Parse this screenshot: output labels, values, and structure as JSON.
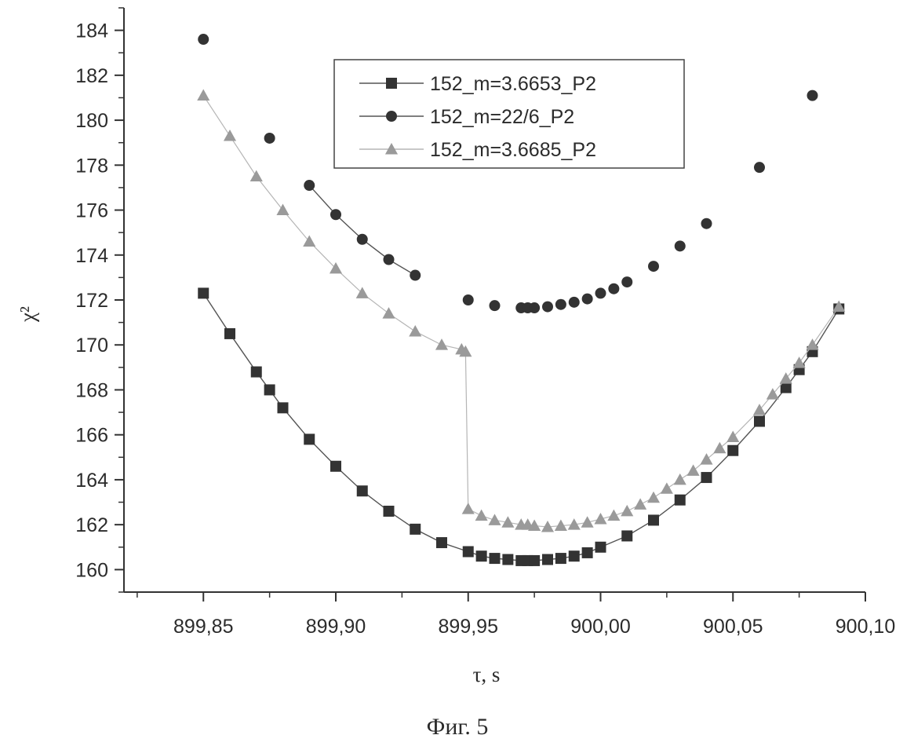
{
  "caption": "Фиг. 5",
  "chart_data": {
    "type": "scatter",
    "xlabel": "τ, s",
    "ylabel": "χ²",
    "xlim": [
      899.82,
      900.1
    ],
    "ylim": [
      159,
      185
    ],
    "xticks": [
      899.85,
      899.9,
      899.95,
      900.0,
      900.05,
      900.1
    ],
    "xtick_labels": [
      "899,85",
      "899,90",
      "899,95",
      "900,00",
      "900,05",
      "900,10"
    ],
    "yticks": [
      160,
      162,
      164,
      166,
      168,
      170,
      172,
      174,
      176,
      178,
      180,
      182,
      184
    ],
    "ytick_labels": [
      "160",
      "162",
      "164",
      "166",
      "168",
      "170",
      "172",
      "174",
      "176",
      "178",
      "180",
      "182",
      "184"
    ],
    "grid": false,
    "legend_position": "top-right",
    "series": [
      {
        "name": "152_m=3.6653_P2",
        "marker": "square",
        "color": "#333333",
        "line_color": "#555555",
        "x": [
          899.85,
          899.86,
          899.87,
          899.875,
          899.88,
          899.89,
          899.9,
          899.91,
          899.92,
          899.93,
          899.94,
          899.95,
          899.955,
          899.96,
          899.965,
          899.97,
          899.9725,
          899.975,
          899.98,
          899.985,
          899.99,
          899.995,
          900.0,
          900.01,
          900.02,
          900.03,
          900.04,
          900.05,
          900.06,
          900.07,
          900.075,
          900.08,
          900.09
        ],
        "y": [
          172.3,
          170.5,
          168.8,
          168.0,
          167.2,
          165.8,
          164.6,
          163.5,
          162.6,
          161.8,
          161.2,
          160.8,
          160.6,
          160.5,
          160.45,
          160.4,
          160.4,
          160.4,
          160.45,
          160.5,
          160.6,
          160.75,
          161.0,
          161.5,
          162.2,
          163.1,
          164.1,
          165.3,
          166.6,
          168.1,
          168.9,
          169.7,
          171.6
        ]
      },
      {
        "name": "152_m=22/6_P2",
        "marker": "circle",
        "color": "#333333",
        "line_color": "#555555",
        "x": [
          899.85,
          899.875,
          899.89,
          899.9,
          899.91,
          899.92,
          899.93,
          899.95,
          899.96,
          899.97,
          899.9725,
          899.975,
          899.98,
          899.985,
          899.99,
          899.995,
          900.0,
          900.005,
          900.01,
          900.02,
          900.03,
          900.04,
          900.06,
          900.08
        ],
        "y": [
          183.6,
          179.2,
          177.1,
          175.8,
          174.7,
          173.8,
          173.1,
          172.0,
          171.75,
          171.65,
          171.65,
          171.65,
          171.7,
          171.8,
          171.9,
          172.05,
          172.3,
          172.5,
          172.8,
          173.5,
          174.4,
          175.4,
          177.9,
          181.1
        ]
      },
      {
        "name": "152_m=3.6685_P2",
        "marker": "triangle",
        "color": "#9a9a9a",
        "line_color": "#b5b5b5",
        "x": [
          899.85,
          899.86,
          899.87,
          899.88,
          899.89,
          899.9,
          899.91,
          899.92,
          899.93,
          899.94,
          899.9475,
          899.949,
          899.95,
          899.955,
          899.96,
          899.965,
          899.97,
          899.9725,
          899.975,
          899.98,
          899.985,
          899.99,
          899.995,
          900.0,
          900.005,
          900.01,
          900.015,
          900.02,
          900.025,
          900.03,
          900.035,
          900.04,
          900.045,
          900.05,
          900.06,
          900.065,
          900.07,
          900.075,
          900.08,
          900.09
        ],
        "y": [
          181.1,
          179.3,
          177.5,
          176.0,
          174.6,
          173.4,
          172.3,
          171.4,
          170.6,
          170.0,
          169.8,
          169.7,
          162.7,
          162.4,
          162.2,
          162.1,
          162.0,
          162.0,
          161.95,
          161.9,
          161.95,
          162.0,
          162.1,
          162.25,
          162.4,
          162.6,
          162.9,
          163.2,
          163.6,
          164.0,
          164.4,
          164.9,
          165.4,
          165.9,
          167.1,
          167.8,
          168.5,
          169.2,
          170.0,
          171.7
        ]
      }
    ]
  }
}
